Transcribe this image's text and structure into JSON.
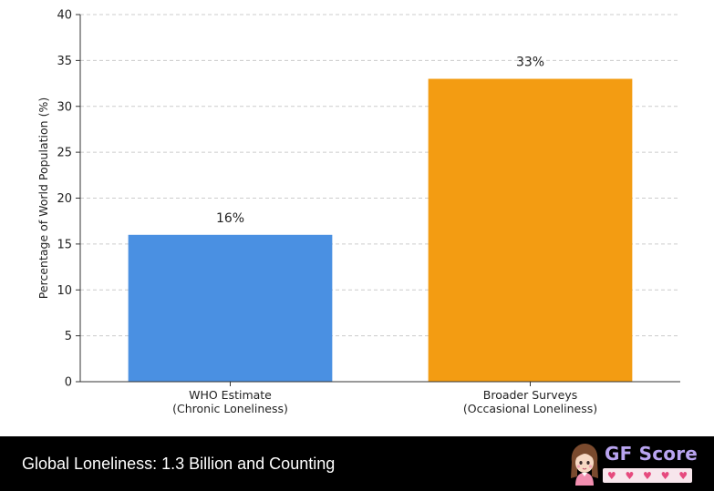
{
  "chart_data": {
    "type": "bar",
    "categories": [
      [
        "WHO Estimate",
        "(Chronic Loneliness)"
      ],
      [
        "Broader Surveys",
        "(Occasional Loneliness)"
      ]
    ],
    "values": [
      16,
      33
    ],
    "data_labels": [
      "16%",
      "33%"
    ],
    "colors": [
      "#4a90e2",
      "#f39c12"
    ],
    "title": "",
    "xlabel": "",
    "ylabel": "Percentage of World Population (%)",
    "ylim": [
      0,
      40
    ],
    "yticks": [
      0,
      5,
      10,
      15,
      20,
      25,
      30,
      35,
      40
    ],
    "grid": true,
    "grid_axis": "y",
    "grid_style": "dashed",
    "legend": "none"
  },
  "footer": {
    "title": "Global Loneliness: 1.3 Billion and Counting",
    "brand": {
      "name": "GF Score",
      "hearts": [
        "♥",
        "♥",
        "♥",
        "♥",
        "♥"
      ],
      "avatar_icon": "girl-avatar-icon"
    }
  },
  "colors": {
    "footer_bg": "#000000",
    "brand_text": "#b9a4f0",
    "heart": "#e64a7e"
  }
}
